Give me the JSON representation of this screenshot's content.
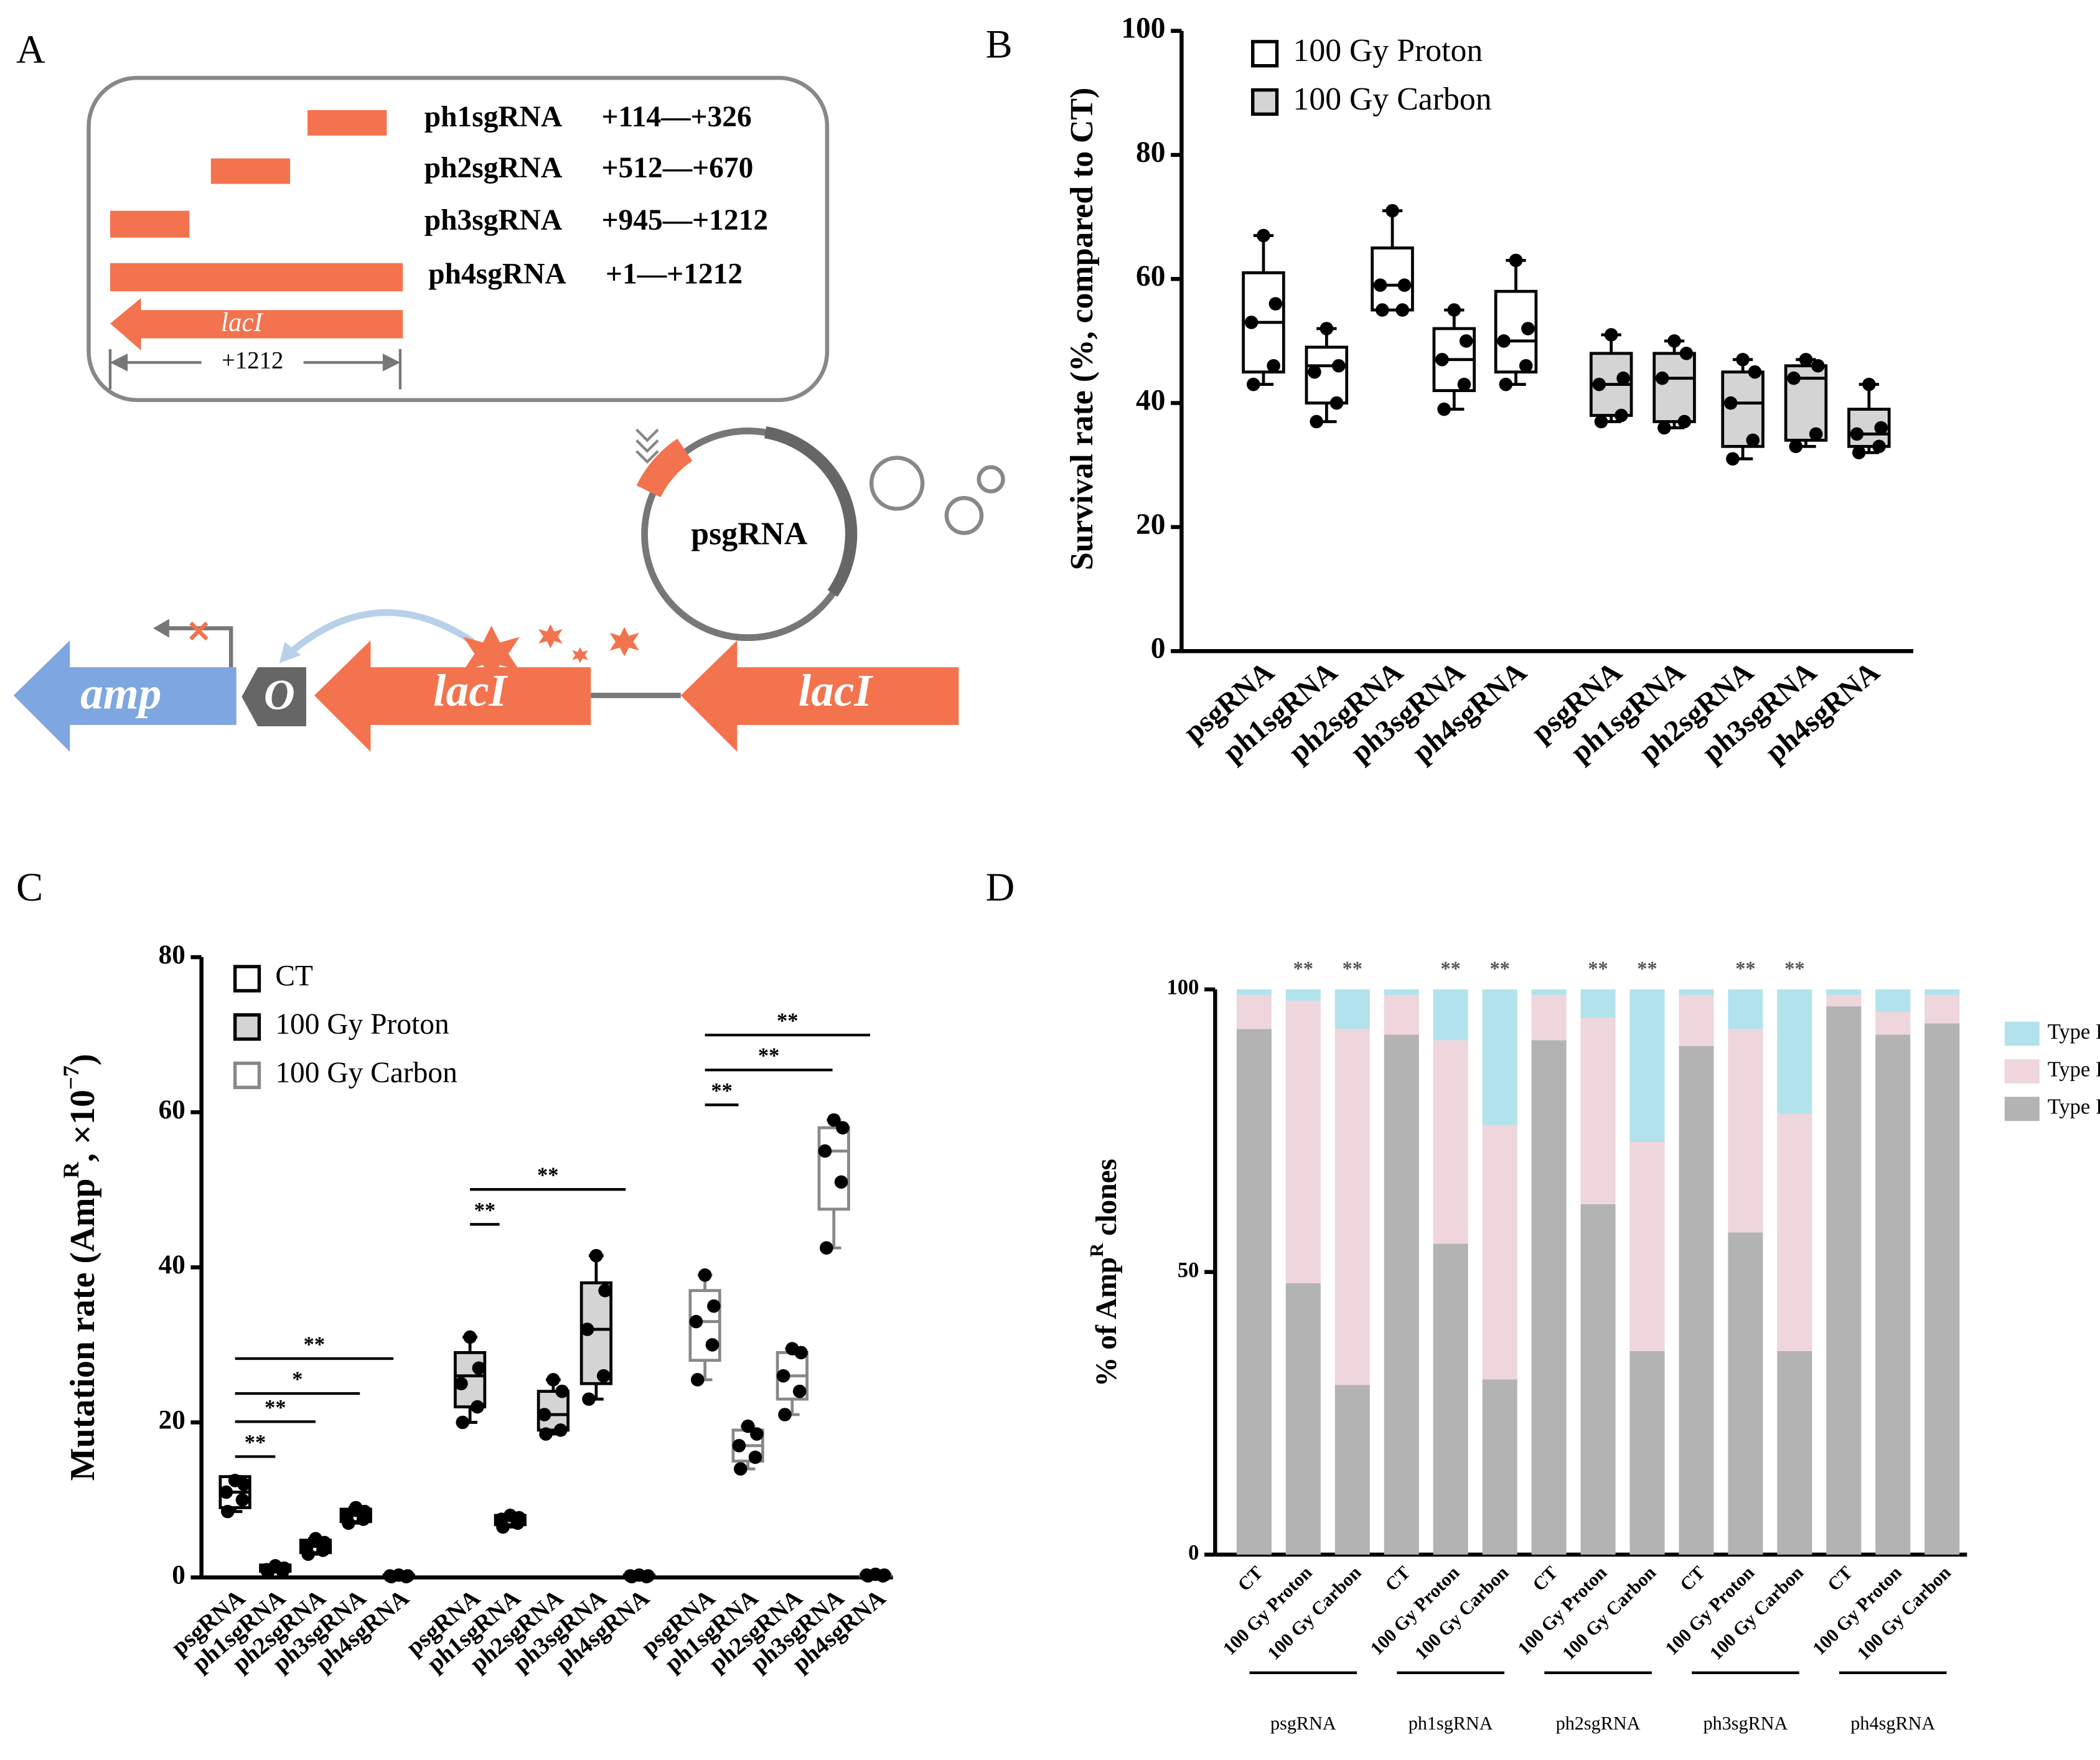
{
  "panel_a": {
    "letter": "A",
    "sgRNAs": [
      {
        "name": "ph1sgRNA",
        "range": "+114—+326"
      },
      {
        "name": "ph2sgRNA",
        "range": "+512—+670"
      },
      {
        "name": "ph3sgRNA",
        "range": "+945—+1212"
      },
      {
        "name": "ph4sgRNA",
        "range": "+1—+1212"
      }
    ],
    "gene_label": "lacI",
    "length": "+1212",
    "plasmid": "psgRNA",
    "operon": {
      "amp": "amp",
      "operator": "O",
      "lacI": [
        "lacI",
        "lacI"
      ]
    }
  },
  "chart_data": [
    {
      "type": "box",
      "label": "B",
      "ylabel": "Survival rate (%, compared to CT)",
      "categories": [
        "psgRNA",
        "ph1sgRNA",
        "ph2sgRNA",
        "ph3sgRNA",
        "ph4sgRNA"
      ],
      "ylim": [
        0,
        100
      ],
      "yticks": [
        0,
        20,
        40,
        60,
        80,
        100
      ],
      "series": [
        {
          "name": "100 Gy Proton",
          "color": "#ffffff",
          "stroke": "#000000",
          "boxes": [
            {
              "min": 43,
              "q1": 45,
              "median": 53,
              "q3": 61,
              "max": 67
            },
            {
              "min": 37,
              "q1": 40,
              "median": 46,
              "q3": 49,
              "max": 52
            },
            {
              "min": 55,
              "q1": 55,
              "median": 59,
              "q3": 65,
              "max": 71
            },
            {
              "min": 39,
              "q1": 42,
              "median": 47,
              "q3": 52,
              "max": 55
            },
            {
              "min": 43,
              "q1": 45,
              "median": 50,
              "q3": 58,
              "max": 63
            }
          ],
          "points": [
            [
              67,
              56,
              53,
              46,
              43
            ],
            [
              52,
              46,
              45,
              40,
              37
            ],
            [
              71,
              59,
              59,
              55,
              55
            ],
            [
              55,
              50,
              47,
              43,
              39
            ],
            [
              63,
              52,
              50,
              46,
              43
            ]
          ]
        },
        {
          "name": "100 Gy Carbon",
          "color": "#d4d4d4",
          "stroke": "#000000",
          "boxes": [
            {
              "min": 37,
              "q1": 38,
              "median": 43,
              "q3": 48,
              "max": 51
            },
            {
              "min": 36,
              "q1": 37,
              "median": 44,
              "q3": 48,
              "max": 50
            },
            {
              "min": 31,
              "q1": 33,
              "median": 40,
              "q3": 45,
              "max": 47
            },
            {
              "min": 33,
              "q1": 34,
              "median": 44,
              "q3": 46,
              "max": 47
            },
            {
              "min": 32,
              "q1": 33,
              "median": 35,
              "q3": 39,
              "max": 43
            }
          ],
          "points": [
            [
              51,
              44,
              43,
              38,
              37
            ],
            [
              50,
              48,
              44,
              37,
              36
            ],
            [
              47,
              45,
              40,
              34,
              31
            ],
            [
              47,
              46,
              44,
              35,
              33
            ],
            [
              43,
              36,
              35,
              33,
              32
            ]
          ]
        }
      ]
    },
    {
      "type": "box",
      "label": "C",
      "ylabel": [
        "Mutation rate (Amp",
        "R",
        ", ×10",
        "−7",
        ")"
      ],
      "categories": [
        "psgRNA",
        "ph1sgRNA",
        "ph2sgRNA",
        "ph3sgRNA",
        "ph4sgRNA"
      ],
      "ylim": [
        0,
        80
      ],
      "yticks": [
        0,
        20,
        40,
        60,
        80
      ],
      "annotations": [
        "**",
        "**",
        "*",
        "**",
        "**",
        "**",
        "**",
        "**",
        "**"
      ],
      "series": [
        {
          "name": "CT",
          "color": "#ffffff",
          "stroke": "#000000",
          "boxes": [
            {
              "min": 8.5,
              "q1": 9,
              "median": 11,
              "q3": 13,
              "max": 13
            },
            {
              "min": 0.7,
              "q1": 0.8,
              "median": 1.2,
              "q3": 1.6,
              "max": 1.6
            },
            {
              "min": 3,
              "q1": 3.2,
              "median": 4,
              "q3": 4.8,
              "max": 5
            },
            {
              "min": 7,
              "q1": 7.2,
              "median": 8,
              "q3": 8.8,
              "max": 9
            },
            {
              "min": 0.1,
              "q1": 0.1,
              "median": 0.2,
              "q3": 0.3,
              "max": 0.3
            }
          ],
          "points": [
            [
              12.5,
              12,
              11,
              10,
              8.5
            ],
            [
              1.5,
              1.2,
              1,
              0.8,
              0.7
            ],
            [
              5,
              4.5,
              4,
              3.5,
              3
            ],
            [
              9,
              8.5,
              8,
              7.5,
              7
            ],
            [
              0.3,
              0.2,
              0.2,
              0.1,
              0.1
            ]
          ]
        },
        {
          "name": "100 Gy Proton",
          "color": "#d4d4d4",
          "stroke": "#000000",
          "boxes": [
            {
              "min": 20,
              "q1": 22,
              "median": 26,
              "q3": 29,
              "max": 31
            },
            {
              "min": 6.5,
              "q1": 6.8,
              "median": 7.5,
              "q3": 8,
              "max": 8
            },
            {
              "min": 18.5,
              "q1": 19,
              "median": 21,
              "q3": 24,
              "max": 25.5
            },
            {
              "min": 23,
              "q1": 25,
              "median": 32,
              "q3": 38,
              "max": 41.5
            },
            {
              "min": 0.1,
              "q1": 0.1,
              "median": 0.2,
              "q3": 0.3,
              "max": 0.3
            }
          ],
          "points": [
            [
              31,
              27,
              25,
              22,
              20
            ],
            [
              8,
              7.7,
              7.5,
              7,
              6.5
            ],
            [
              25.5,
              24,
              21,
              19,
              18.5
            ],
            [
              41.5,
              37,
              32,
              26,
              23
            ],
            [
              0.3,
              0.2,
              0.2,
              0.1,
              0.1
            ]
          ]
        },
        {
          "name": "100 Gy Carbon",
          "color": "#ffffff",
          "stroke": "#888888",
          "boxes": [
            {
              "min": 25.5,
              "q1": 28,
              "median": 33,
              "q3": 37,
              "max": 39
            },
            {
              "min": 14,
              "q1": 15,
              "median": 17,
              "q3": 19,
              "max": 19.5
            },
            {
              "min": 21,
              "q1": 23,
              "median": 26,
              "q3": 29,
              "max": 29.5
            },
            {
              "min": 42.5,
              "q1": 47.5,
              "median": 55,
              "q3": 58,
              "max": 59
            },
            {
              "min": 0.2,
              "q1": 0.2,
              "median": 0.3,
              "q3": 0.4,
              "max": 0.4
            }
          ],
          "points": [
            [
              39,
              35,
              33,
              30,
              25.5
            ],
            [
              19.5,
              18.5,
              17,
              15.5,
              14
            ],
            [
              29.5,
              29,
              26,
              24,
              21
            ],
            [
              59,
              58,
              55,
              51,
              42.5
            ],
            [
              0.4,
              0.3,
              0.3,
              0.2,
              0.2
            ]
          ]
        }
      ]
    },
    {
      "type": "stacked_bar",
      "label": "D",
      "ylabel": [
        "% of Amp",
        "R",
        " clones"
      ],
      "categories": [
        "CT",
        "100 Gy Proton",
        "100 Gy Carbon",
        "CT",
        "100 Gy Proton",
        "100 Gy Carbon",
        "CT",
        "100 Gy Proton",
        "100 Gy Carbon",
        "CT",
        "100 Gy Proton",
        "100 Gy Carbon",
        "CT",
        "100 Gy Proton",
        "100 Gy Carbon"
      ],
      "groups": [
        "psgRNA",
        "ph1sgRNA",
        "ph2sgRNA",
        "ph3sgRNA",
        "ph4sgRNA"
      ],
      "significance": [
        null,
        "**",
        "**",
        null,
        "**",
        "**",
        null,
        "**",
        "**",
        null,
        "**",
        "**",
        null,
        null,
        null
      ],
      "ylim": [
        0,
        100
      ],
      "yticks": [
        0,
        50,
        100
      ],
      "series": [
        {
          "name": "Type I",
          "color": "#b3b3b3",
          "values": [
            93,
            48,
            30,
            92,
            55,
            31,
            91,
            62,
            36,
            90,
            57,
            36,
            97,
            92,
            94
          ]
        },
        {
          "name": "Type II",
          "color": "#efd5dc",
          "values": [
            6,
            50,
            63,
            7,
            36,
            45,
            8,
            33,
            37,
            9,
            36,
            42,
            2,
            4,
            5
          ]
        },
        {
          "name": "Type III",
          "color": "#b2e3ec",
          "values": [
            1,
            2,
            7,
            1,
            9,
            24,
            1,
            5,
            27,
            1,
            7,
            22,
            1,
            4,
            1
          ]
        }
      ]
    }
  ]
}
